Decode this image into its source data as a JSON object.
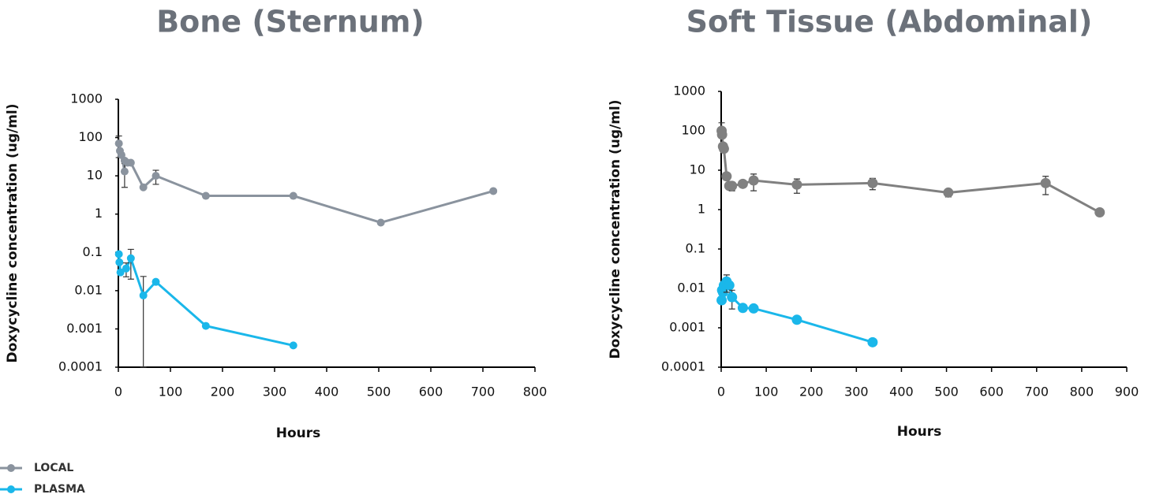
{
  "chart_data": [
    {
      "type": "line",
      "title": "Bone (Sternum)",
      "xlabel": "Hours",
      "ylabel": "Doxycycline concentration (ug/ml)",
      "xlim": [
        0,
        800
      ],
      "xticks": [
        0,
        100,
        200,
        300,
        400,
        500,
        600,
        700,
        800
      ],
      "ylim": [
        0.0001,
        1000
      ],
      "yticks": [
        0.0001,
        0.001,
        0.01,
        0.1,
        1,
        10,
        100,
        1000
      ],
      "log_y": true,
      "grid": false,
      "legend": "bottom-left",
      "series": [
        {
          "name": "LOCAL",
          "color": "#8a939e",
          "x": [
            1,
            3,
            6,
            12,
            12,
            18,
            24,
            48,
            72,
            168,
            336,
            504,
            720
          ],
          "values": [
            70,
            45,
            35,
            13,
            25,
            22,
            22,
            5,
            10,
            3,
            3,
            0.6,
            4
          ],
          "errors": [
            40,
            null,
            null,
            8,
            null,
            null,
            null,
            null,
            4,
            null,
            null,
            null,
            null
          ]
        },
        {
          "name": "PLASMA",
          "color": "#1ab7ea",
          "x": [
            1,
            2,
            4,
            15,
            24,
            48,
            72,
            168,
            336
          ],
          "values": [
            0.09,
            0.055,
            0.03,
            0.038,
            0.07,
            0.0075,
            0.017,
            0.0012,
            0.00037
          ],
          "errors": [
            null,
            null,
            null,
            0.015,
            0.05,
            0.016,
            null,
            null,
            null
          ]
        }
      ]
    },
    {
      "type": "line",
      "title": "Soft Tissue (Abdominal)",
      "xlabel": "Hours",
      "ylabel": "Doxycycline concentration (ug/ml)",
      "xlim": [
        0,
        900
      ],
      "xticks": [
        0,
        100,
        200,
        300,
        400,
        500,
        600,
        700,
        800,
        900
      ],
      "ylim": [
        0.0001,
        1000
      ],
      "yticks": [
        0.0001,
        0.001,
        0.01,
        0.1,
        1,
        10,
        100,
        1000
      ],
      "log_y": true,
      "grid": false,
      "series": [
        {
          "name": "LOCAL",
          "color": "#808080",
          "x": [
            1,
            2,
            4,
            6,
            12,
            18,
            24,
            48,
            72,
            168,
            336,
            504,
            720,
            840
          ],
          "values": [
            100,
            80,
            40,
            35,
            7,
            4,
            4,
            4.5,
            5.5,
            4.3,
            4.7,
            2.7,
            4.7,
            0.85
          ],
          "errors": [
            60,
            null,
            null,
            null,
            null,
            null,
            1,
            null,
            2.5,
            1.7,
            1.5,
            0.6,
            2.3,
            null
          ]
        },
        {
          "name": "PLASMA",
          "color": "#1ab7ea",
          "x": [
            1,
            2,
            4,
            6,
            12,
            18,
            24,
            48,
            72,
            168,
            336
          ],
          "values": [
            0.005,
            0.009,
            0.008,
            0.012,
            0.015,
            0.012,
            0.006,
            0.0032,
            0.0031,
            0.0016,
            0.00043
          ],
          "errors": [
            null,
            null,
            null,
            null,
            0.007,
            null,
            0.003,
            null,
            null,
            null,
            null
          ]
        }
      ]
    }
  ]
}
